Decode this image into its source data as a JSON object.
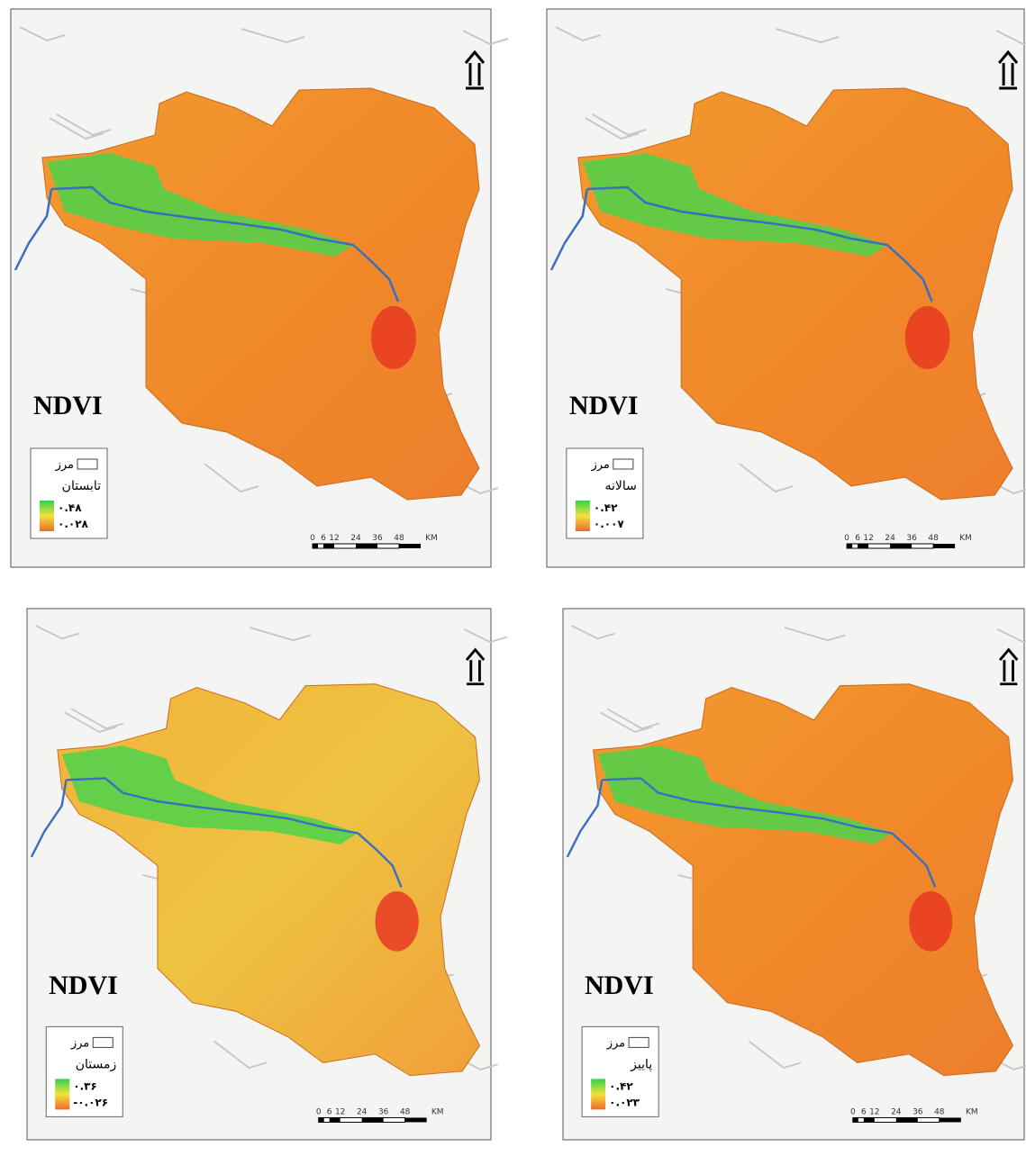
{
  "panels": [
    {
      "title": "NDVI",
      "legend": {
        "boundary": "مرز",
        "season": "تابستان",
        "max": "۰.۴۸",
        "min": "۰.۰۲۸"
      },
      "scale": [
        "0",
        "6",
        "12",
        "24",
        "36",
        "48",
        "KM"
      ]
    },
    {
      "title": "NDVI",
      "legend": {
        "boundary": "مرز",
        "season": "سالانه",
        "max": "۰.۴۲",
        "min": "۰.۰۰۷"
      },
      "scale": [
        "0",
        "6",
        "12",
        "24",
        "36",
        "48",
        "KM"
      ]
    },
    {
      "title": "NDVI",
      "legend": {
        "boundary": "مرز",
        "season": "زمستان",
        "max": "۰.۳۶",
        "min": "-۰.۰۲۶"
      },
      "scale": [
        "0",
        "6",
        "12",
        "24",
        "36",
        "48",
        "KM"
      ]
    },
    {
      "title": "NDVI",
      "legend": {
        "boundary": "مرز",
        "season": "پاییز",
        "max": "۰.۴۲",
        "min": "۰.۰۲۳"
      },
      "scale": [
        "0",
        "6",
        "12",
        "24",
        "36",
        "48",
        "KM"
      ]
    }
  ]
}
